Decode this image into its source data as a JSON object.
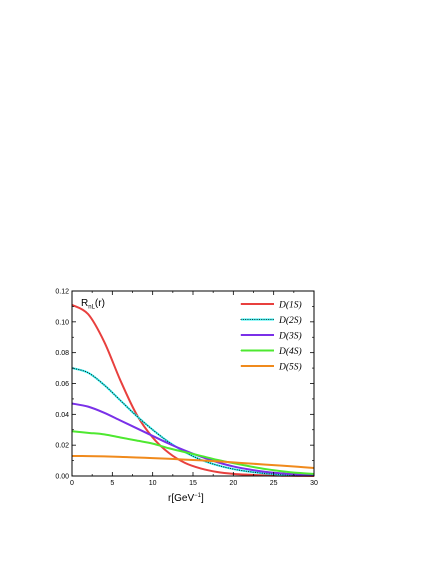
{
  "chart_data": {
    "type": "line",
    "xlabel": {
      "base": "r[GeV",
      "sup": "−1",
      "tail": "]"
    },
    "ylabel": {
      "base": "R",
      "sub": "nL",
      "tail": "(r)"
    },
    "xlim": [
      0,
      30
    ],
    "ylim": [
      0,
      0.12
    ],
    "xticks": [
      "0",
      "5",
      "10",
      "15",
      "20",
      "25",
      "30"
    ],
    "yticks": [
      "0.00",
      "0.02",
      "0.04",
      "0.06",
      "0.08",
      "0.10",
      "0.12"
    ],
    "legend_position": "top-right",
    "grid": false,
    "x": [
      0,
      2,
      4,
      6,
      8,
      10,
      12,
      14,
      16,
      18,
      20,
      22,
      24,
      26,
      28,
      30
    ],
    "series": [
      {
        "name": "D(1S)",
        "color": "#e8403e",
        "marker_color": "#e8403e",
        "values": [
          0.111,
          0.105,
          0.087,
          0.062,
          0.04,
          0.025,
          0.015,
          0.0085,
          0.0048,
          0.0026,
          0.0014,
          0.0008,
          0.0004,
          0.0002,
          0.0001,
          0.0
        ]
      },
      {
        "name": "D(2S)",
        "color": "#2ff0f0",
        "marker_color": "#222222",
        "values": [
          0.07,
          0.067,
          0.059,
          0.049,
          0.039,
          0.03,
          0.022,
          0.0155,
          0.0105,
          0.007,
          0.0045,
          0.0028,
          0.0016,
          0.0009,
          0.0005,
          0.0003
        ]
      },
      {
        "name": "D(3S)",
        "color": "#7a30e8",
        "marker_color": "#7a30e8",
        "values": [
          0.047,
          0.045,
          0.041,
          0.036,
          0.031,
          0.026,
          0.021,
          0.0165,
          0.0125,
          0.009,
          0.0062,
          0.0042,
          0.0027,
          0.0017,
          0.001,
          0.0006
        ]
      },
      {
        "name": "D(4S)",
        "color": "#4ee830",
        "marker_color": "#4ee830",
        "values": [
          0.029,
          0.028,
          0.027,
          0.025,
          0.023,
          0.021,
          0.018,
          0.0155,
          0.013,
          0.0105,
          0.0083,
          0.0063,
          0.0045,
          0.0031,
          0.002,
          0.0013
        ]
      },
      {
        "name": "D(5S)",
        "color": "#f08a1c",
        "marker_color": "#f08a1c",
        "values": [
          0.013,
          0.0129,
          0.0127,
          0.0124,
          0.012,
          0.0116,
          0.0112,
          0.0106,
          0.0101,
          0.0095,
          0.0088,
          0.0081,
          0.0074,
          0.0067,
          0.006,
          0.0052
        ]
      }
    ]
  }
}
